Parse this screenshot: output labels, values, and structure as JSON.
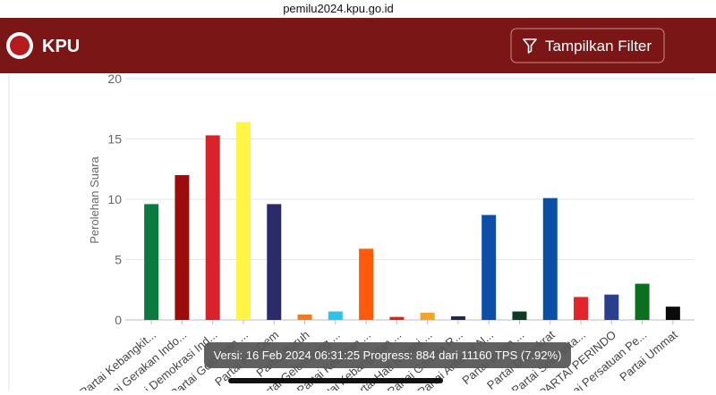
{
  "browser": {
    "url": "pemilu2024.kpu.go.id"
  },
  "header": {
    "brand": "KPU",
    "filter_button": "Tampilkan Filter"
  },
  "chart_data": {
    "type": "bar",
    "y_label": "Perolehan Suara",
    "categories": [
      "Partai Kebangkit...",
      "Partai Gerakan Indo...",
      "Partai Demokrasi Ind...",
      "Partai Golongan ...",
      "Partai NasDem",
      "Partai Buruh",
      "Partai Gelombang ...",
      "Partai Keadilan ...",
      "Partai Kebangkitan ...",
      "Partai Hati Nurani ...",
      "Partai Garuda R...",
      "Partai Amanat N...",
      "Partai Bulan ...",
      "Partai Demokrat",
      "Partai Solidarita...",
      "PARTAI PERINDO",
      "Partai Persatuan Pe...",
      "Partai Ummat"
    ],
    "values": [
      9.6,
      12.0,
      15.3,
      16.4,
      9.6,
      0.45,
      0.7,
      5.9,
      0.25,
      0.6,
      0.3,
      8.7,
      0.7,
      10.1,
      1.9,
      2.1,
      3.0,
      1.1
    ],
    "colors": [
      "#0b7a3e",
      "#9b0d0d",
      "#d9232a",
      "#fff545",
      "#2b2a6b",
      "#f57a1f",
      "#29c4ee",
      "#ff5a0a",
      "#e02020",
      "#f2a32a",
      "#1c2a4d",
      "#0b4fa8",
      "#0f3b26",
      "#0a4fa6",
      "#e3242b",
      "#2b3f8c",
      "#0a7020",
      "#0a0a0a"
    ],
    "ylim": [
      0,
      20
    ],
    "yticks": [
      0,
      5,
      10,
      15,
      20
    ],
    "grid": true
  },
  "footer": {
    "version_info": "Versi: 16 Feb 2024 06:31:25 Progress: 884 dari 11160 TPS (7.92%)"
  }
}
